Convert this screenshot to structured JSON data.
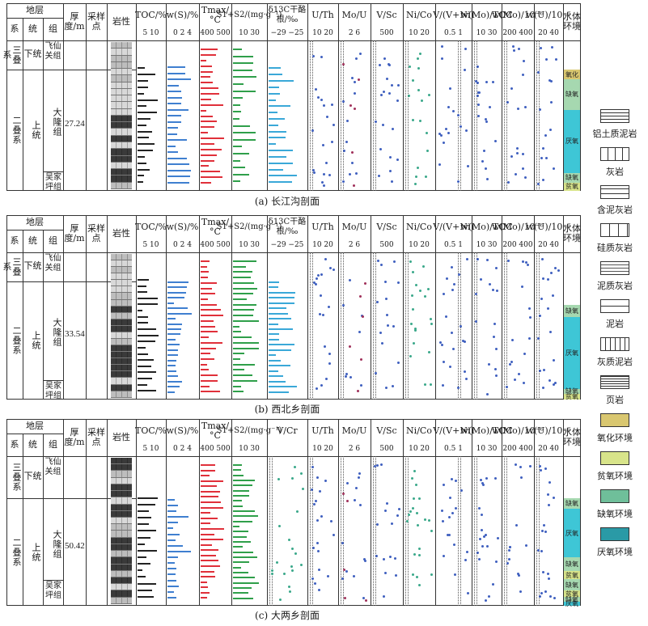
{
  "panels": [
    {
      "id": "a",
      "caption": "(a) 长江沟剖面",
      "thickness": "27.24",
      "env_zones": [
        {
          "label": "氧化",
          "color": "#d9c770",
          "from": 0.0,
          "to": 0.08
        },
        {
          "label": "缺氧",
          "color": "#a6d8b0",
          "from": 0.08,
          "to": 0.33
        },
        {
          "label": "厌氧",
          "color": "#3ec6d6",
          "from": 0.33,
          "to": 0.85
        },
        {
          "label": "缺氧",
          "color": "#a6d8b0",
          "from": 0.85,
          "to": 0.93
        },
        {
          "label": "贫氧",
          "color": "#d8e48a",
          "from": 0.93,
          "to": 1.0
        }
      ]
    },
    {
      "id": "b",
      "caption": "(b) 西北乡剖面",
      "thickness": "33.54",
      "env_zones": [
        {
          "label": "缺氧",
          "color": "#a6d8b0",
          "from": 0.2,
          "to": 0.3
        },
        {
          "label": "厌氧",
          "color": "#3ec6d6",
          "from": 0.3,
          "to": 0.91
        },
        {
          "label": "缺氧",
          "color": "#a6d8b0",
          "from": 0.91,
          "to": 0.95
        },
        {
          "label": "贫氧",
          "color": "#d8e48a",
          "from": 0.95,
          "to": 1.0
        }
      ]
    },
    {
      "id": "c",
      "caption": "(c) 大两乡剖面",
      "thickness": "50.42",
      "env_zones": [
        {
          "label": "缺氧",
          "color": "#a6d8b0",
          "from": 0.0,
          "to": 0.1
        },
        {
          "label": "厌氧",
          "color": "#3ec6d6",
          "from": 0.1,
          "to": 0.55
        },
        {
          "label": "缺氧",
          "color": "#a6d8b0",
          "from": 0.55,
          "to": 0.68
        },
        {
          "label": "贫氧",
          "color": "#d8e48a",
          "from": 0.68,
          "to": 0.75
        },
        {
          "label": "缺氧",
          "color": "#a6d8b0",
          "from": 0.75,
          "to": 0.86
        },
        {
          "label": "贫氧",
          "color": "#d8e48a",
          "from": 0.86,
          "to": 0.92
        },
        {
          "label": "缺氧",
          "color": "#a6d8b0",
          "from": 0.92,
          "to": 0.96
        },
        {
          "label": "厌氧",
          "color": "#3ec6d6",
          "from": 0.96,
          "to": 1.0
        }
      ]
    }
  ],
  "header": {
    "stratum": "地层",
    "system": "系",
    "series": "统",
    "group": "组",
    "thickness": "厚度/m",
    "sample": "采样点",
    "lithology": "岩性",
    "toc": "TOC/%",
    "ws": "w(S)/%",
    "tmax": "Tmax/°C",
    "s1s2": "S1+S2/(mg·g⁻¹)",
    "d13c": "δ13C干酪根/‰",
    "vcr": "V/Cr",
    "uth": "U/Th",
    "mou": "Mo/U",
    "vsc": "V/Sc",
    "nico": "Ni/Co",
    "vvni": "V/(V+Ni)",
    "motoc": "w(Mo)/TOC",
    "mo": "w(Mo)/10⁻⁶",
    "u": "w(U)/10⁻⁶",
    "water_env": "水体环境"
  },
  "ticks": {
    "toc": "5 10",
    "ws": "0 2 4",
    "tmax": "400 500",
    "s1s2": "10 30",
    "d13c": "−29 −25",
    "vcr": "",
    "uth": "10 20",
    "mou": "2 6",
    "vsc": "500",
    "nico": "10 20",
    "vvni": "0.5 1",
    "motoc": "10 30",
    "mo": "200 400",
    "u": "20 40"
  },
  "strat": {
    "triassic": "三叠系",
    "lower": "下统",
    "feixianguan": "飞仙关组",
    "permian": "二叠系",
    "upper": "上统",
    "dalong": "大隆组",
    "wujiaping": "吴家坪组"
  },
  "legend": [
    {
      "icon": "bauxite-mudstone-icon",
      "label": "铝土质泥岩"
    },
    {
      "icon": "limestone-icon",
      "label": "灰岩"
    },
    {
      "icon": "muddy-limestone-icon",
      "label": "含泥灰岩"
    },
    {
      "icon": "siliceous-limestone-icon",
      "label": "硅质灰岩"
    },
    {
      "icon": "argillaceous-limestone-icon",
      "label": "泥质灰岩"
    },
    {
      "icon": "mudstone-icon",
      "label": "泥岩"
    },
    {
      "icon": "calcareous-mudstone-icon",
      "label": "灰质泥岩"
    },
    {
      "icon": "shale-icon",
      "label": "页岩"
    },
    {
      "icon": "oxidizing-env-icon",
      "label": "氧化环境",
      "color": "#d9c770"
    },
    {
      "icon": "dysoxic-env-icon",
      "label": "贫氧环境",
      "color": "#d8e48a"
    },
    {
      "icon": "suboxic-env-icon",
      "label": "缺氧环境",
      "color": "#6fbf9a"
    },
    {
      "icon": "anoxic-env-icon",
      "label": "厌氧环境",
      "color": "#2a9aa6"
    }
  ],
  "colors": {
    "toc": "#222222",
    "ws": "#3f7fd0",
    "tmax": "#e0303a",
    "s1s2": "#2f9f4a",
    "d13c": "#3aa8d8",
    "dots": "#3f5fbf"
  }
}
